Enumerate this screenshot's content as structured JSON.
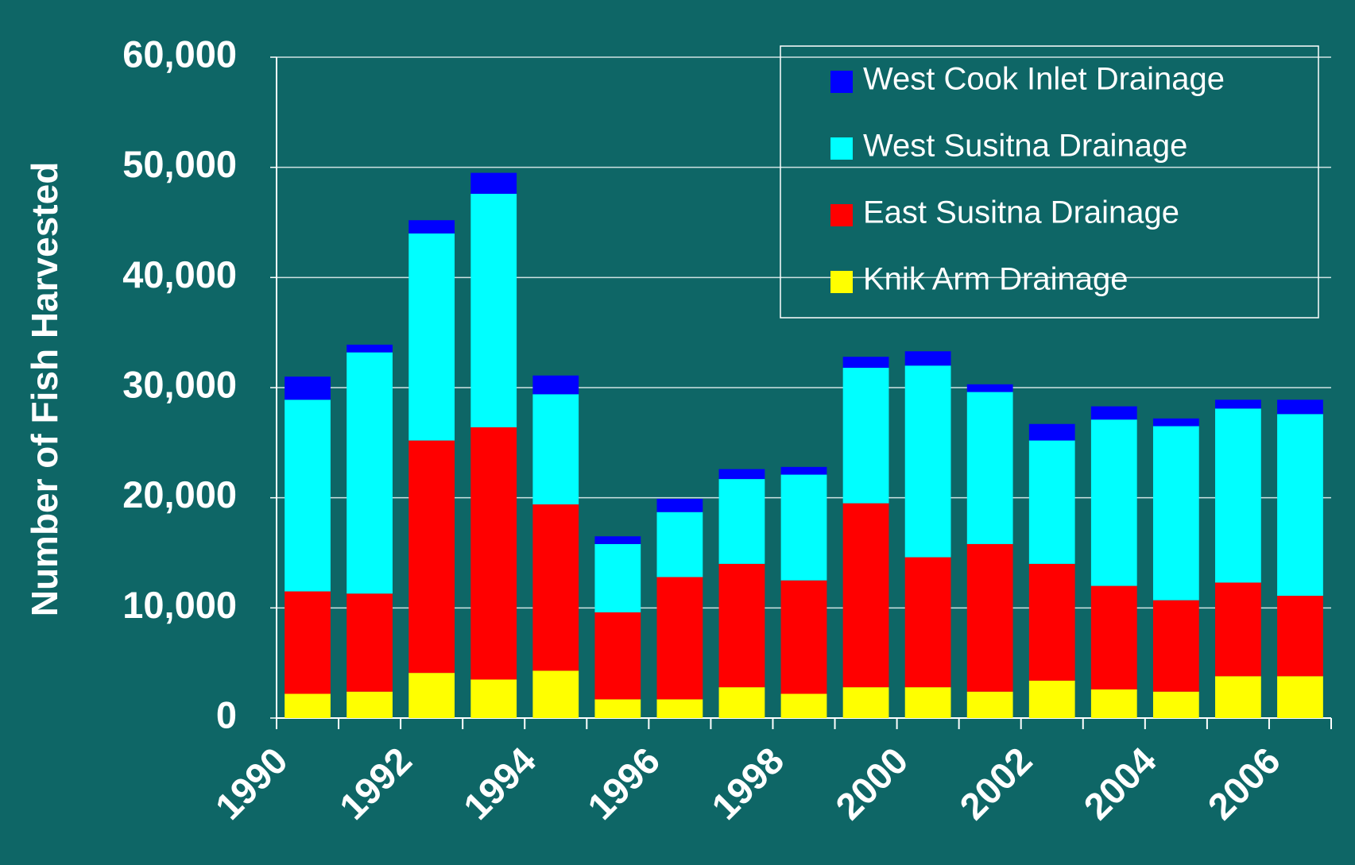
{
  "chart_data": {
    "type": "stacked_bar",
    "ylabel": "Number of Fish Harvested",
    "categories": [
      "1990",
      null,
      "1992",
      null,
      "1994",
      null,
      "1996",
      null,
      "1998",
      null,
      "2000",
      null,
      "2002",
      null,
      "2004",
      null,
      "2006"
    ],
    "series": [
      {
        "name": "Knik Arm Drainage",
        "color": "#ffff00",
        "values": [
          2200,
          2400,
          4100,
          3500,
          4300,
          1700,
          1700,
          2800,
          2200,
          2800,
          2800,
          2400,
          3400,
          2600,
          2400,
          3800,
          3800
        ]
      },
      {
        "name": "East Susitna Drainage",
        "color": "#ff0000",
        "values": [
          9300,
          8900,
          21100,
          22900,
          15100,
          7900,
          11100,
          11200,
          10300,
          16700,
          11800,
          13400,
          10600,
          9400,
          8300,
          8500,
          7300
        ]
      },
      {
        "name": "West Susitna Drainage",
        "color": "#00ffff",
        "values": [
          17400,
          21900,
          18800,
          21200,
          10000,
          6200,
          5900,
          7700,
          9600,
          12300,
          17400,
          13800,
          11200,
          15100,
          15800,
          15800,
          16500
        ]
      },
      {
        "name": "West Cook Inlet Drainage",
        "color": "#0000ff",
        "values": [
          2100,
          700,
          1200,
          1900,
          1700,
          700,
          1200,
          900,
          700,
          1000,
          1300,
          700,
          1500,
          1200,
          700,
          800,
          1300
        ]
      }
    ],
    "ylim": [
      0,
      60000
    ],
    "yticks": [
      0,
      {
        "value": 10000,
        "label": "10,000"
      },
      {
        "value": 20000,
        "label": "20,000"
      },
      {
        "value": 30000,
        "label": "30,000"
      },
      {
        "value": 40000,
        "label": "40,000"
      },
      {
        "value": 50000,
        "label": "50,000"
      },
      {
        "value": 60000,
        "label": "60,000"
      }
    ],
    "grid": true,
    "legend": "upper right"
  }
}
